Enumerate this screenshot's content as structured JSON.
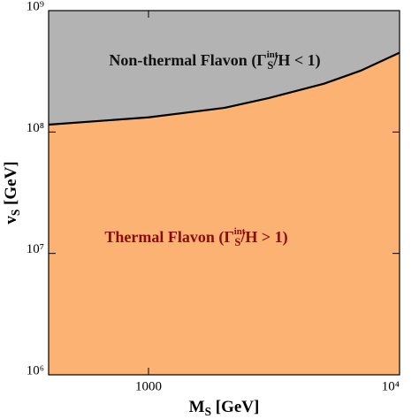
{
  "chart_data": {
    "type": "region",
    "x_label": [
      {
        "text": "M"
      },
      {
        "text": "S",
        "sub": true
      },
      {
        "text": " [GeV]"
      }
    ],
    "y_label": [
      {
        "text": "v"
      },
      {
        "text": "S",
        "sub": true
      },
      {
        "text": " [GeV]"
      }
    ],
    "x_log": true,
    "y_log": true,
    "xlim": [
      400,
      10000
    ],
    "ylim": [
      1000000,
      1000000000
    ],
    "xticks": [
      1000,
      {
        "value": 10000,
        "label": "10⁴"
      }
    ],
    "yticks": [
      {
        "value": 1000000,
        "label": "10⁶"
      },
      {
        "value": 10000000,
        "label": "10⁷"
      },
      {
        "value": 100000000,
        "label": "10⁸"
      },
      {
        "value": 1000000000,
        "label": "10⁹"
      }
    ],
    "x": [
      400,
      1000,
      2000,
      3000,
      5000,
      7000,
      10000
    ],
    "series": [
      {
        "name": "boundary",
        "color": "#000000",
        "values": [
          115000000,
          132000000,
          158000000,
          190000000,
          250000000,
          320000000,
          450000000
        ]
      }
    ],
    "above_color": "#b3b3b3",
    "below_color": "#fcb272",
    "annotations": [
      {
        "color": "#111111",
        "parts": [
          {
            "text": "Non-thermal Flavon (Γ"
          },
          {
            "text": "int",
            "sup": true
          },
          {
            "text": "S",
            "sub": true
          },
          {
            "text": "/H < 1)"
          }
        ]
      },
      {
        "color": "#8b0a0a",
        "parts": [
          {
            "text": "Thermal Flavon (Γ"
          },
          {
            "text": "int",
            "sup": true
          },
          {
            "text": "S",
            "sub": true
          },
          {
            "text": "/H > 1)"
          }
        ]
      }
    ]
  }
}
